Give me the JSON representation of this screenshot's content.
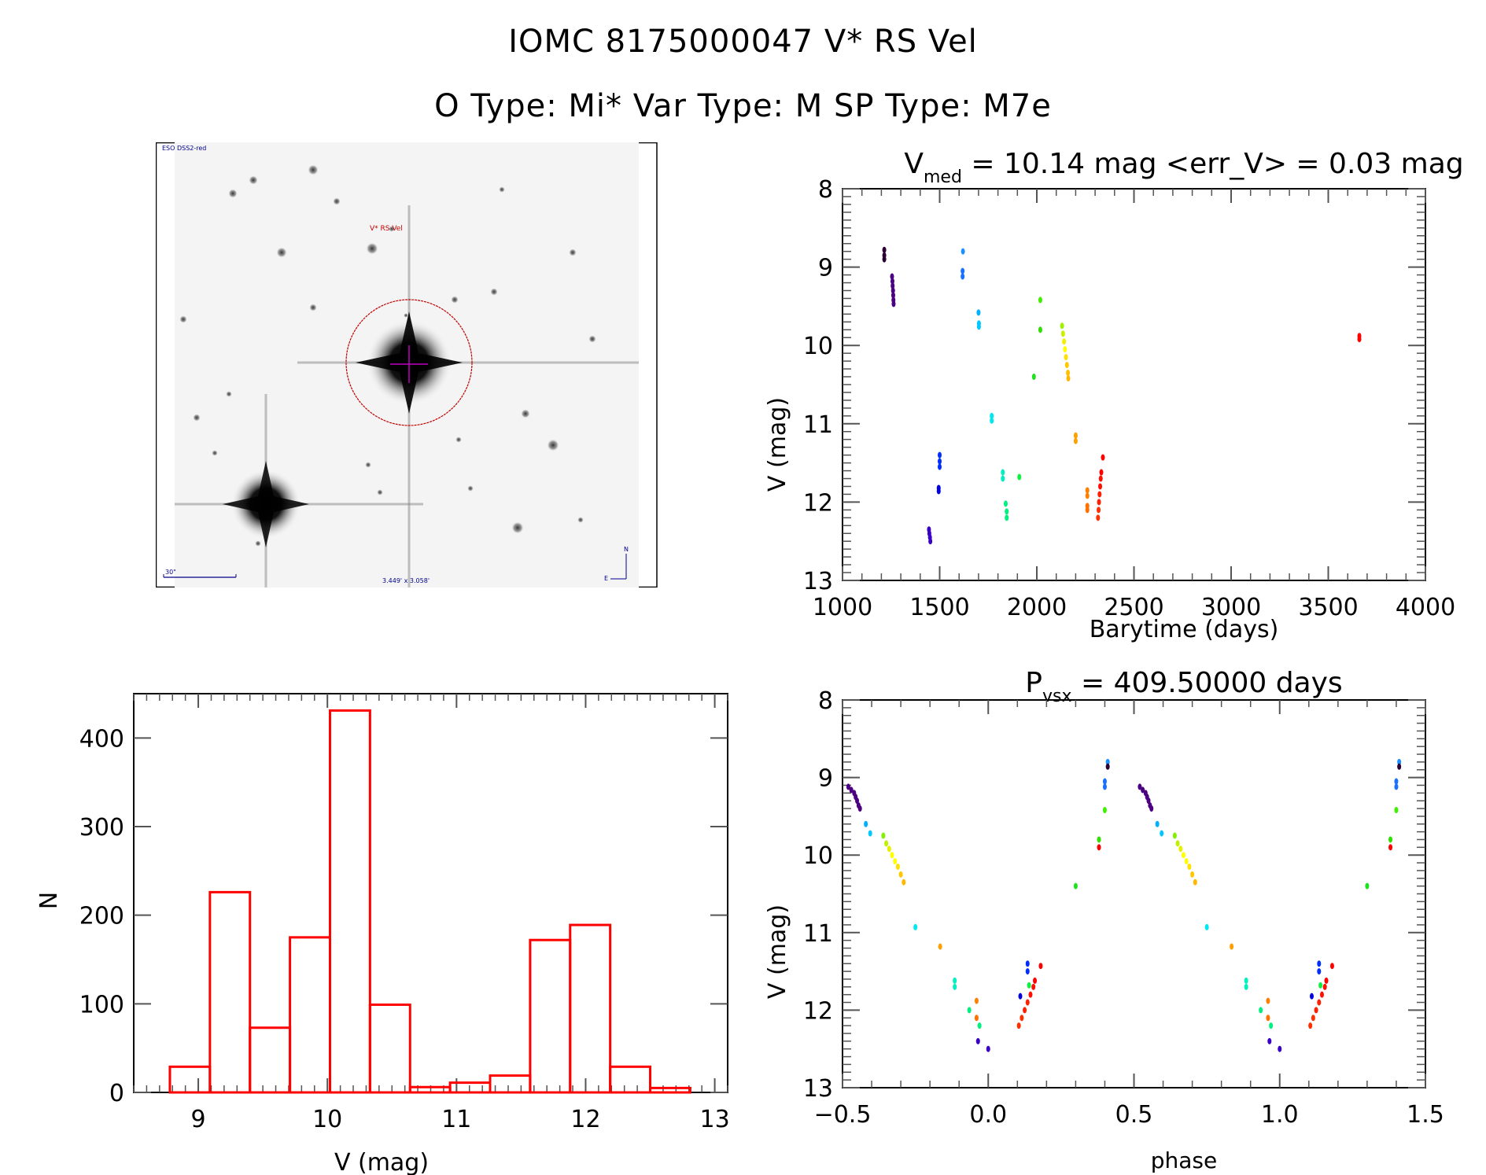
{
  "header": {
    "title_line1": "IOMC 8175000047    V* RS Vel",
    "title_line2": "O Type: Mi*   Var Type: M   SP Type: M7e"
  },
  "finder_chart": {
    "survey_label": "ESO DSS2-red",
    "target_label": "V* RS Vel",
    "scale_bar_label": "30\"",
    "field_size_label": "3.449' x 3.058'",
    "compass_north": "N",
    "compass_east": "E"
  },
  "chart_data": [
    {
      "id": "light_curve",
      "type": "scatter",
      "title_main": "V",
      "title_sub": "med",
      "title_rest": " = 10.14 mag <err_V> = 0.03 mag",
      "xlabel": "Barytime (days)",
      "ylabel": "V (mag)",
      "xlim": [
        1000,
        4000
      ],
      "ylim": [
        13,
        8
      ],
      "y_inverted": true,
      "xticks": [
        1000,
        1500,
        2000,
        2500,
        3000,
        3500,
        4000
      ],
      "yticks": [
        8,
        9,
        10,
        11,
        12,
        13
      ],
      "points": [
        {
          "x": 1215,
          "y": 8.78,
          "c": "#2a0030"
        },
        {
          "x": 1215,
          "y": 8.85,
          "c": "#2a0030"
        },
        {
          "x": 1215,
          "y": 8.9,
          "c": "#2a0030"
        },
        {
          "x": 1255,
          "y": 9.12,
          "c": "#4b0082"
        },
        {
          "x": 1257,
          "y": 9.18,
          "c": "#4b0082"
        },
        {
          "x": 1258,
          "y": 9.24,
          "c": "#4b0082"
        },
        {
          "x": 1260,
          "y": 9.3,
          "c": "#4b0082"
        },
        {
          "x": 1261,
          "y": 9.36,
          "c": "#4b0082"
        },
        {
          "x": 1262,
          "y": 9.42,
          "c": "#4b0082"
        },
        {
          "x": 1263,
          "y": 9.47,
          "c": "#4b0082"
        },
        {
          "x": 1445,
          "y": 12.35,
          "c": "#3a00c8"
        },
        {
          "x": 1447,
          "y": 12.4,
          "c": "#3a00c8"
        },
        {
          "x": 1450,
          "y": 12.45,
          "c": "#3a00c8"
        },
        {
          "x": 1452,
          "y": 12.5,
          "c": "#3a00c8"
        },
        {
          "x": 1500,
          "y": 11.4,
          "c": "#0030ff"
        },
        {
          "x": 1500,
          "y": 11.48,
          "c": "#0030ff"
        },
        {
          "x": 1500,
          "y": 11.55,
          "c": "#0030ff"
        },
        {
          "x": 1495,
          "y": 11.82,
          "c": "#0000e0"
        },
        {
          "x": 1495,
          "y": 11.86,
          "c": "#0000e0"
        },
        {
          "x": 1620,
          "y": 8.8,
          "c": "#1e90ff"
        },
        {
          "x": 1618,
          "y": 9.05,
          "c": "#1a70ff"
        },
        {
          "x": 1618,
          "y": 9.12,
          "c": "#1a70ff"
        },
        {
          "x": 1700,
          "y": 9.58,
          "c": "#00b0ff"
        },
        {
          "x": 1702,
          "y": 9.72,
          "c": "#00c8ff"
        },
        {
          "x": 1702,
          "y": 9.76,
          "c": "#00c8ff"
        },
        {
          "x": 1768,
          "y": 10.9,
          "c": "#00e8f0"
        },
        {
          "x": 1768,
          "y": 10.96,
          "c": "#00e8f0"
        },
        {
          "x": 1825,
          "y": 11.62,
          "c": "#00f0c0"
        },
        {
          "x": 1825,
          "y": 11.7,
          "c": "#00f0c0"
        },
        {
          "x": 1840,
          "y": 12.02,
          "c": "#00f080"
        },
        {
          "x": 1845,
          "y": 12.12,
          "c": "#00f080"
        },
        {
          "x": 1845,
          "y": 12.2,
          "c": "#00f080"
        },
        {
          "x": 1910,
          "y": 11.68,
          "c": "#10f040"
        },
        {
          "x": 1985,
          "y": 10.4,
          "c": "#20e020"
        },
        {
          "x": 2018,
          "y": 9.42,
          "c": "#40f000"
        },
        {
          "x": 2018,
          "y": 9.8,
          "c": "#30e000"
        },
        {
          "x": 2130,
          "y": 9.75,
          "c": "#a0f000"
        },
        {
          "x": 2135,
          "y": 9.85,
          "c": "#c8f000"
        },
        {
          "x": 2140,
          "y": 9.95,
          "c": "#f0f000"
        },
        {
          "x": 2145,
          "y": 10.05,
          "c": "#ffff00"
        },
        {
          "x": 2150,
          "y": 10.15,
          "c": "#ffe000"
        },
        {
          "x": 2155,
          "y": 10.25,
          "c": "#ffc800"
        },
        {
          "x": 2160,
          "y": 10.35,
          "c": "#ffc000"
        },
        {
          "x": 2162,
          "y": 10.42,
          "c": "#ffb800"
        },
        {
          "x": 2200,
          "y": 11.15,
          "c": "#ffa000"
        },
        {
          "x": 2200,
          "y": 11.22,
          "c": "#ffa000"
        },
        {
          "x": 2260,
          "y": 11.85,
          "c": "#ff8000"
        },
        {
          "x": 2260,
          "y": 11.92,
          "c": "#ff8000"
        },
        {
          "x": 2260,
          "y": 12.05,
          "c": "#ff7000"
        },
        {
          "x": 2260,
          "y": 12.1,
          "c": "#ff7000"
        },
        {
          "x": 2315,
          "y": 12.2,
          "c": "#ff3000"
        },
        {
          "x": 2318,
          "y": 12.1,
          "c": "#ff3000"
        },
        {
          "x": 2320,
          "y": 12.0,
          "c": "#ff2000"
        },
        {
          "x": 2323,
          "y": 11.9,
          "c": "#ff2000"
        },
        {
          "x": 2326,
          "y": 11.8,
          "c": "#ff1000"
        },
        {
          "x": 2329,
          "y": 11.7,
          "c": "#ff1000"
        },
        {
          "x": 2332,
          "y": 11.62,
          "c": "#ff0000"
        },
        {
          "x": 2340,
          "y": 11.43,
          "c": "#ff0000"
        },
        {
          "x": 3660,
          "y": 9.88,
          "c": "#ff0000"
        },
        {
          "x": 3660,
          "y": 9.92,
          "c": "#ff0000"
        }
      ]
    },
    {
      "id": "histogram",
      "type": "bar",
      "title": "",
      "xlabel": "V (mag)",
      "ylabel": "N",
      "xlim": [
        8.5,
        13.1
      ],
      "ylim": [
        0,
        450
      ],
      "xticks": [
        9,
        10,
        11,
        12,
        13
      ],
      "yticks": [
        0,
        100,
        200,
        300,
        400
      ],
      "bin_edges": [
        8.78,
        9.09,
        9.4,
        9.71,
        10.02,
        10.33,
        10.64,
        10.95,
        11.26,
        11.57,
        11.88,
        12.19,
        12.5,
        12.81
      ],
      "values": [
        29,
        226,
        73,
        175,
        431,
        99,
        6,
        11,
        19,
        172,
        189,
        29,
        5
      ],
      "bar_color": "#ff0000"
    },
    {
      "id": "phase_curve",
      "type": "scatter",
      "title_main": "P",
      "title_sub": "vsx",
      "title_rest": " = 409.50000 days",
      "xlabel": "phase",
      "ylabel": "V (mag)",
      "xlim": [
        -0.5,
        1.5
      ],
      "ylim": [
        13,
        8
      ],
      "y_inverted": true,
      "xticks": [
        "-0.5",
        "0.0",
        "0.5",
        "1.0",
        "1.5"
      ],
      "yticks": [
        8,
        9,
        10,
        11,
        12,
        13
      ],
      "points": [
        {
          "x": -0.48,
          "y": 9.12,
          "c": "#4b0082"
        },
        {
          "x": -0.47,
          "y": 9.16,
          "c": "#4b0082"
        },
        {
          "x": -0.46,
          "y": 9.2,
          "c": "#4b0082"
        },
        {
          "x": -0.455,
          "y": 9.25,
          "c": "#4b0082"
        },
        {
          "x": -0.45,
          "y": 9.3,
          "c": "#4b0082"
        },
        {
          "x": -0.445,
          "y": 9.36,
          "c": "#4b0082"
        },
        {
          "x": -0.44,
          "y": 9.4,
          "c": "#4b0082"
        },
        {
          "x": -0.42,
          "y": 9.6,
          "c": "#00b0ff"
        },
        {
          "x": -0.405,
          "y": 9.72,
          "c": "#00c8ff"
        },
        {
          "x": -0.36,
          "y": 9.75,
          "c": "#80f000"
        },
        {
          "x": -0.35,
          "y": 9.85,
          "c": "#c0f000"
        },
        {
          "x": -0.34,
          "y": 9.92,
          "c": "#e8f000"
        },
        {
          "x": -0.33,
          "y": 10.0,
          "c": "#ffff00"
        },
        {
          "x": -0.32,
          "y": 10.08,
          "c": "#ffff00"
        },
        {
          "x": -0.31,
          "y": 10.15,
          "c": "#ffe000"
        },
        {
          "x": -0.3,
          "y": 10.25,
          "c": "#ffc800"
        },
        {
          "x": -0.29,
          "y": 10.35,
          "c": "#ffb800"
        },
        {
          "x": -0.25,
          "y": 10.93,
          "c": "#00e8f0"
        },
        {
          "x": -0.165,
          "y": 11.18,
          "c": "#ffa000"
        },
        {
          "x": -0.115,
          "y": 11.62,
          "c": "#00f0c0"
        },
        {
          "x": -0.115,
          "y": 11.7,
          "c": "#00f0c0"
        },
        {
          "x": -0.065,
          "y": 12.0,
          "c": "#00f080"
        },
        {
          "x": -0.04,
          "y": 11.88,
          "c": "#ff8000"
        },
        {
          "x": -0.04,
          "y": 12.1,
          "c": "#ff7000"
        },
        {
          "x": -0.03,
          "y": 12.2,
          "c": "#00f080"
        },
        {
          "x": -0.035,
          "y": 12.4,
          "c": "#3a00c8"
        },
        {
          "x": 0.0,
          "y": 12.5,
          "c": "#3a00c8"
        },
        {
          "x": 0.105,
          "y": 12.2,
          "c": "#ff3000"
        },
        {
          "x": 0.115,
          "y": 12.1,
          "c": "#ff3000"
        },
        {
          "x": 0.125,
          "y": 12.0,
          "c": "#ff2000"
        },
        {
          "x": 0.135,
          "y": 11.9,
          "c": "#ff2000"
        },
        {
          "x": 0.145,
          "y": 11.8,
          "c": "#ff1000"
        },
        {
          "x": 0.155,
          "y": 11.7,
          "c": "#ff1000"
        },
        {
          "x": 0.16,
          "y": 11.62,
          "c": "#ff0000"
        },
        {
          "x": 0.11,
          "y": 11.82,
          "c": "#0000e0"
        },
        {
          "x": 0.135,
          "y": 11.4,
          "c": "#0030ff"
        },
        {
          "x": 0.135,
          "y": 11.5,
          "c": "#0030ff"
        },
        {
          "x": 0.14,
          "y": 11.68,
          "c": "#10f040"
        },
        {
          "x": 0.18,
          "y": 11.43,
          "c": "#ff0000"
        },
        {
          "x": 0.3,
          "y": 10.4,
          "c": "#20e020"
        },
        {
          "x": 0.38,
          "y": 9.8,
          "c": "#30e000"
        },
        {
          "x": 0.38,
          "y": 9.9,
          "c": "#ff0000"
        },
        {
          "x": 0.4,
          "y": 9.42,
          "c": "#40f000"
        },
        {
          "x": 0.4,
          "y": 9.05,
          "c": "#1a70ff"
        },
        {
          "x": 0.4,
          "y": 9.12,
          "c": "#1a70ff"
        },
        {
          "x": 0.41,
          "y": 8.8,
          "c": "#1e90ff"
        },
        {
          "x": 0.41,
          "y": 8.86,
          "c": "#2a0030"
        },
        {
          "x": 0.52,
          "y": 9.12,
          "c": "#4b0082"
        },
        {
          "x": 0.53,
          "y": 9.16,
          "c": "#4b0082"
        },
        {
          "x": 0.54,
          "y": 9.2,
          "c": "#4b0082"
        },
        {
          "x": 0.545,
          "y": 9.25,
          "c": "#4b0082"
        },
        {
          "x": 0.55,
          "y": 9.3,
          "c": "#4b0082"
        },
        {
          "x": 0.555,
          "y": 9.36,
          "c": "#4b0082"
        },
        {
          "x": 0.56,
          "y": 9.4,
          "c": "#4b0082"
        },
        {
          "x": 0.58,
          "y": 9.6,
          "c": "#00b0ff"
        },
        {
          "x": 0.595,
          "y": 9.72,
          "c": "#00c8ff"
        },
        {
          "x": 0.64,
          "y": 9.75,
          "c": "#80f000"
        },
        {
          "x": 0.65,
          "y": 9.85,
          "c": "#c0f000"
        },
        {
          "x": 0.66,
          "y": 9.92,
          "c": "#e8f000"
        },
        {
          "x": 0.67,
          "y": 10.0,
          "c": "#ffff00"
        },
        {
          "x": 0.68,
          "y": 10.08,
          "c": "#ffff00"
        },
        {
          "x": 0.69,
          "y": 10.15,
          "c": "#ffe000"
        },
        {
          "x": 0.7,
          "y": 10.25,
          "c": "#ffc800"
        },
        {
          "x": 0.71,
          "y": 10.35,
          "c": "#ffb800"
        },
        {
          "x": 0.75,
          "y": 10.93,
          "c": "#00e8f0"
        },
        {
          "x": 0.835,
          "y": 11.18,
          "c": "#ffa000"
        },
        {
          "x": 0.885,
          "y": 11.62,
          "c": "#00f0c0"
        },
        {
          "x": 0.885,
          "y": 11.7,
          "c": "#00f0c0"
        },
        {
          "x": 0.935,
          "y": 12.0,
          "c": "#00f080"
        },
        {
          "x": 0.96,
          "y": 11.88,
          "c": "#ff8000"
        },
        {
          "x": 0.96,
          "y": 12.1,
          "c": "#ff7000"
        },
        {
          "x": 0.97,
          "y": 12.2,
          "c": "#00f080"
        },
        {
          "x": 0.965,
          "y": 12.4,
          "c": "#3a00c8"
        },
        {
          "x": 1.0,
          "y": 12.5,
          "c": "#3a00c8"
        },
        {
          "x": 1.105,
          "y": 12.2,
          "c": "#ff3000"
        },
        {
          "x": 1.115,
          "y": 12.1,
          "c": "#ff3000"
        },
        {
          "x": 1.125,
          "y": 12.0,
          "c": "#ff2000"
        },
        {
          "x": 1.135,
          "y": 11.9,
          "c": "#ff2000"
        },
        {
          "x": 1.145,
          "y": 11.8,
          "c": "#ff1000"
        },
        {
          "x": 1.155,
          "y": 11.7,
          "c": "#ff1000"
        },
        {
          "x": 1.16,
          "y": 11.62,
          "c": "#ff0000"
        },
        {
          "x": 1.11,
          "y": 11.82,
          "c": "#0000e0"
        },
        {
          "x": 1.135,
          "y": 11.4,
          "c": "#0030ff"
        },
        {
          "x": 1.135,
          "y": 11.5,
          "c": "#0030ff"
        },
        {
          "x": 1.14,
          "y": 11.68,
          "c": "#10f040"
        },
        {
          "x": 1.18,
          "y": 11.43,
          "c": "#ff0000"
        },
        {
          "x": 1.3,
          "y": 10.4,
          "c": "#20e020"
        },
        {
          "x": 1.38,
          "y": 9.8,
          "c": "#30e000"
        },
        {
          "x": 1.38,
          "y": 9.9,
          "c": "#ff0000"
        },
        {
          "x": 1.4,
          "y": 9.42,
          "c": "#40f000"
        },
        {
          "x": 1.4,
          "y": 9.05,
          "c": "#1a70ff"
        },
        {
          "x": 1.4,
          "y": 9.12,
          "c": "#1a70ff"
        },
        {
          "x": 1.41,
          "y": 8.8,
          "c": "#1e90ff"
        },
        {
          "x": 1.41,
          "y": 8.86,
          "c": "#2a0030"
        }
      ]
    }
  ]
}
